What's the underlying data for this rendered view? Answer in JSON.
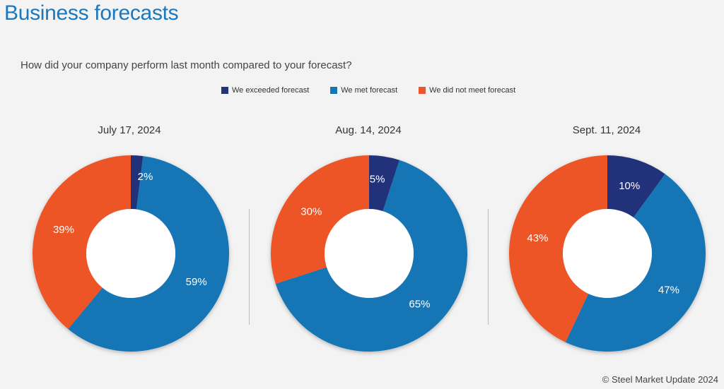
{
  "header": {
    "title": "Business forecasts",
    "question": "How did your company perform last month compared to your forecast?",
    "copyright": "© Steel Market Update 2024"
  },
  "legend": [
    {
      "label": "We exceeded forecast",
      "color": "#22337a"
    },
    {
      "label": "We met forecast",
      "color": "#1474b4"
    },
    {
      "label": "We did not meet forecast",
      "color": "#ee5528"
    }
  ],
  "chart_data": [
    {
      "type": "pie",
      "title": "July 17, 2024",
      "categories": [
        "We exceeded forecast",
        "We met forecast",
        "We did not meet forecast"
      ],
      "values": [
        2,
        59,
        39
      ],
      "labels": [
        "2%",
        "59%",
        "39%"
      ]
    },
    {
      "type": "pie",
      "title": "Aug. 14, 2024",
      "categories": [
        "We exceeded forecast",
        "We met forecast",
        "We did not meet forecast"
      ],
      "values": [
        5,
        65,
        30
      ],
      "labels": [
        "5%",
        "65%",
        "30%"
      ]
    },
    {
      "type": "pie",
      "title": "Sept. 11, 2024",
      "categories": [
        "We exceeded forecast",
        "We met forecast",
        "We did not meet forecast"
      ],
      "values": [
        10,
        47,
        43
      ],
      "labels": [
        "10%",
        "47%",
        "43%"
      ]
    }
  ]
}
